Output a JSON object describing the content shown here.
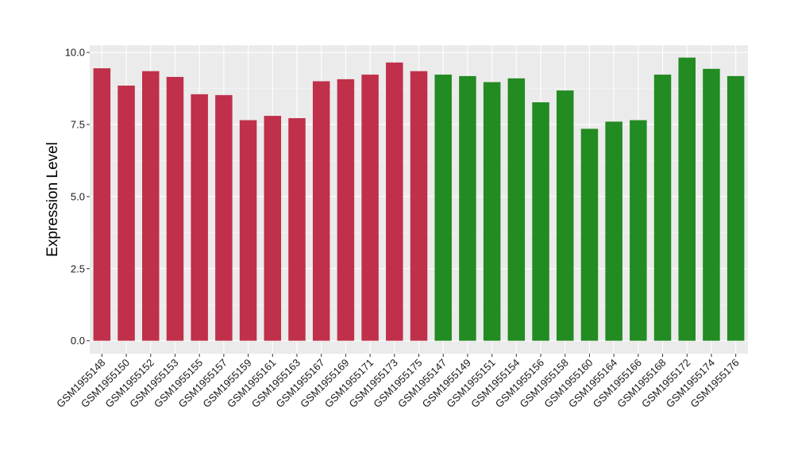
{
  "chart_data": {
    "type": "bar",
    "title": "",
    "xlabel": "",
    "ylabel": "Expression Level",
    "ylim": [
      -0.45,
      10.25
    ],
    "yticks": [
      0.0,
      2.5,
      5.0,
      7.5,
      10.0
    ],
    "ytick_labels": [
      "0.0",
      "2.5",
      "5.0",
      "7.5",
      "10.0"
    ],
    "grid": true,
    "categories": [
      "GSM1955148",
      "GSM1955150",
      "GSM1955152",
      "GSM1955153",
      "GSM1955155",
      "GSM1955157",
      "GSM1955159",
      "GSM1955161",
      "GSM1955163",
      "GSM1955167",
      "GSM1955169",
      "GSM1955171",
      "GSM1955173",
      "GSM1955175",
      "GSM1955147",
      "GSM1955149",
      "GSM1955151",
      "GSM1955154",
      "GSM1955156",
      "GSM1955158",
      "GSM1955160",
      "GSM1955164",
      "GSM1955166",
      "GSM1955168",
      "GSM1955172",
      "GSM1955174",
      "GSM1955176"
    ],
    "values": [
      9.45,
      8.85,
      9.35,
      9.15,
      8.55,
      8.52,
      7.65,
      7.8,
      7.72,
      9.0,
      9.07,
      9.23,
      9.65,
      9.35,
      9.23,
      9.18,
      8.97,
      9.1,
      8.27,
      8.68,
      7.35,
      7.6,
      7.65,
      9.23,
      9.82,
      9.43,
      9.18
    ],
    "groups": [
      "a",
      "a",
      "a",
      "a",
      "a",
      "a",
      "a",
      "a",
      "a",
      "a",
      "a",
      "a",
      "a",
      "a",
      "b",
      "b",
      "b",
      "b",
      "b",
      "b",
      "b",
      "b",
      "b",
      "b",
      "b",
      "b",
      "b"
    ],
    "colors": {
      "a": "#C0304A",
      "b": "#228B22",
      "panel_background": "#EBEBEB",
      "grid_major": "#FFFFFF",
      "grid_minor": "#F5F5F5",
      "tick_mark": "#333333"
    }
  }
}
